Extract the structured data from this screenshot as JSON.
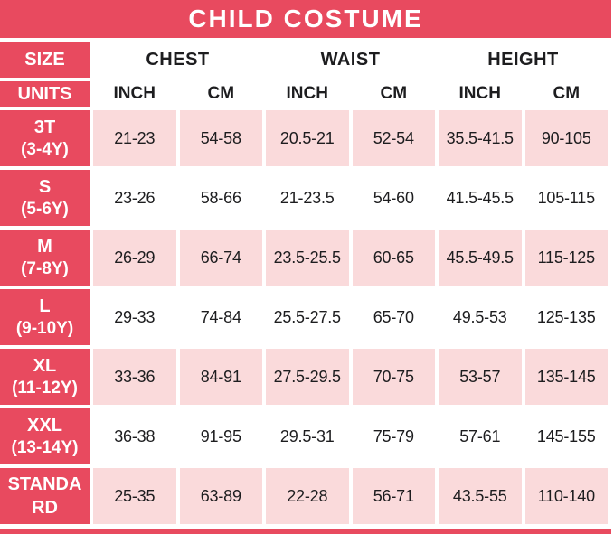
{
  "title": "CHILD COSTUME",
  "colors": {
    "primary_crimson": "#e84a5f",
    "row_pink": "#fadadb",
    "text_dark": "#1d1d1f",
    "text_light": "#ffffff"
  },
  "header": {
    "size_label": "SIZE",
    "units_label": "UNITS",
    "groups": [
      {
        "label": "CHEST"
      },
      {
        "label": "WAIST"
      },
      {
        "label": "HEIGHT"
      }
    ],
    "unit_columns": [
      "INCH",
      "CM",
      "INCH",
      "CM",
      "INCH",
      "CM"
    ]
  },
  "rows": [
    {
      "size": "3T",
      "age": "(3-4Y)",
      "values": [
        "21-23",
        "54-58",
        "20.5-21",
        "52-54",
        "35.5-41.5",
        "90-105"
      ]
    },
    {
      "size": "S",
      "age": "(5-6Y)",
      "values": [
        "23-26",
        "58-66",
        "21-23.5",
        "54-60",
        "41.5-45.5",
        "105-115"
      ]
    },
    {
      "size": "M",
      "age": "(7-8Y)",
      "values": [
        "26-29",
        "66-74",
        "23.5-25.5",
        "60-65",
        "45.5-49.5",
        "115-125"
      ]
    },
    {
      "size": "L",
      "age": "(9-10Y)",
      "values": [
        "29-33",
        "74-84",
        "25.5-27.5",
        "65-70",
        "49.5-53",
        "125-135"
      ]
    },
    {
      "size": "XL",
      "age": "(11-12Y)",
      "values": [
        "33-36",
        "84-91",
        "27.5-29.5",
        "70-75",
        "53-57",
        "135-145"
      ]
    },
    {
      "size": "XXL",
      "age": "(13-14Y)",
      "values": [
        "36-38",
        "91-95",
        "29.5-31",
        "75-79",
        "57-61",
        "145-155"
      ]
    },
    {
      "size": "STANDARD",
      "age": "",
      "values": [
        "25-35",
        "63-89",
        "22-28",
        "56-71",
        "43.5-55",
        "110-140"
      ]
    }
  ],
  "chart_data": {
    "type": "table",
    "title": "CHILD COSTUME",
    "column_groups": [
      "SIZE",
      "CHEST",
      "CHEST",
      "WAIST",
      "WAIST",
      "HEIGHT",
      "HEIGHT"
    ],
    "columns": [
      "SIZE / UNITS",
      "CHEST INCH",
      "CHEST CM",
      "WAIST INCH",
      "WAIST CM",
      "HEIGHT INCH",
      "HEIGHT CM"
    ],
    "rows": [
      [
        "3T (3-4Y)",
        "21-23",
        "54-58",
        "20.5-21",
        "52-54",
        "35.5-41.5",
        "90-105"
      ],
      [
        "S (5-6Y)",
        "23-26",
        "58-66",
        "21-23.5",
        "54-60",
        "41.5-45.5",
        "105-115"
      ],
      [
        "M (7-8Y)",
        "26-29",
        "66-74",
        "23.5-25.5",
        "60-65",
        "45.5-49.5",
        "115-125"
      ],
      [
        "L (9-10Y)",
        "29-33",
        "74-84",
        "25.5-27.5",
        "65-70",
        "49.5-53",
        "125-135"
      ],
      [
        "XL (11-12Y)",
        "33-36",
        "84-91",
        "27.5-29.5",
        "70-75",
        "53-57",
        "135-145"
      ],
      [
        "XXL (13-14Y)",
        "36-38",
        "91-95",
        "29.5-31",
        "75-79",
        "57-61",
        "145-155"
      ],
      [
        "STANDARD",
        "25-35",
        "63-89",
        "22-28",
        "56-71",
        "43.5-55",
        "110-140"
      ]
    ]
  }
}
